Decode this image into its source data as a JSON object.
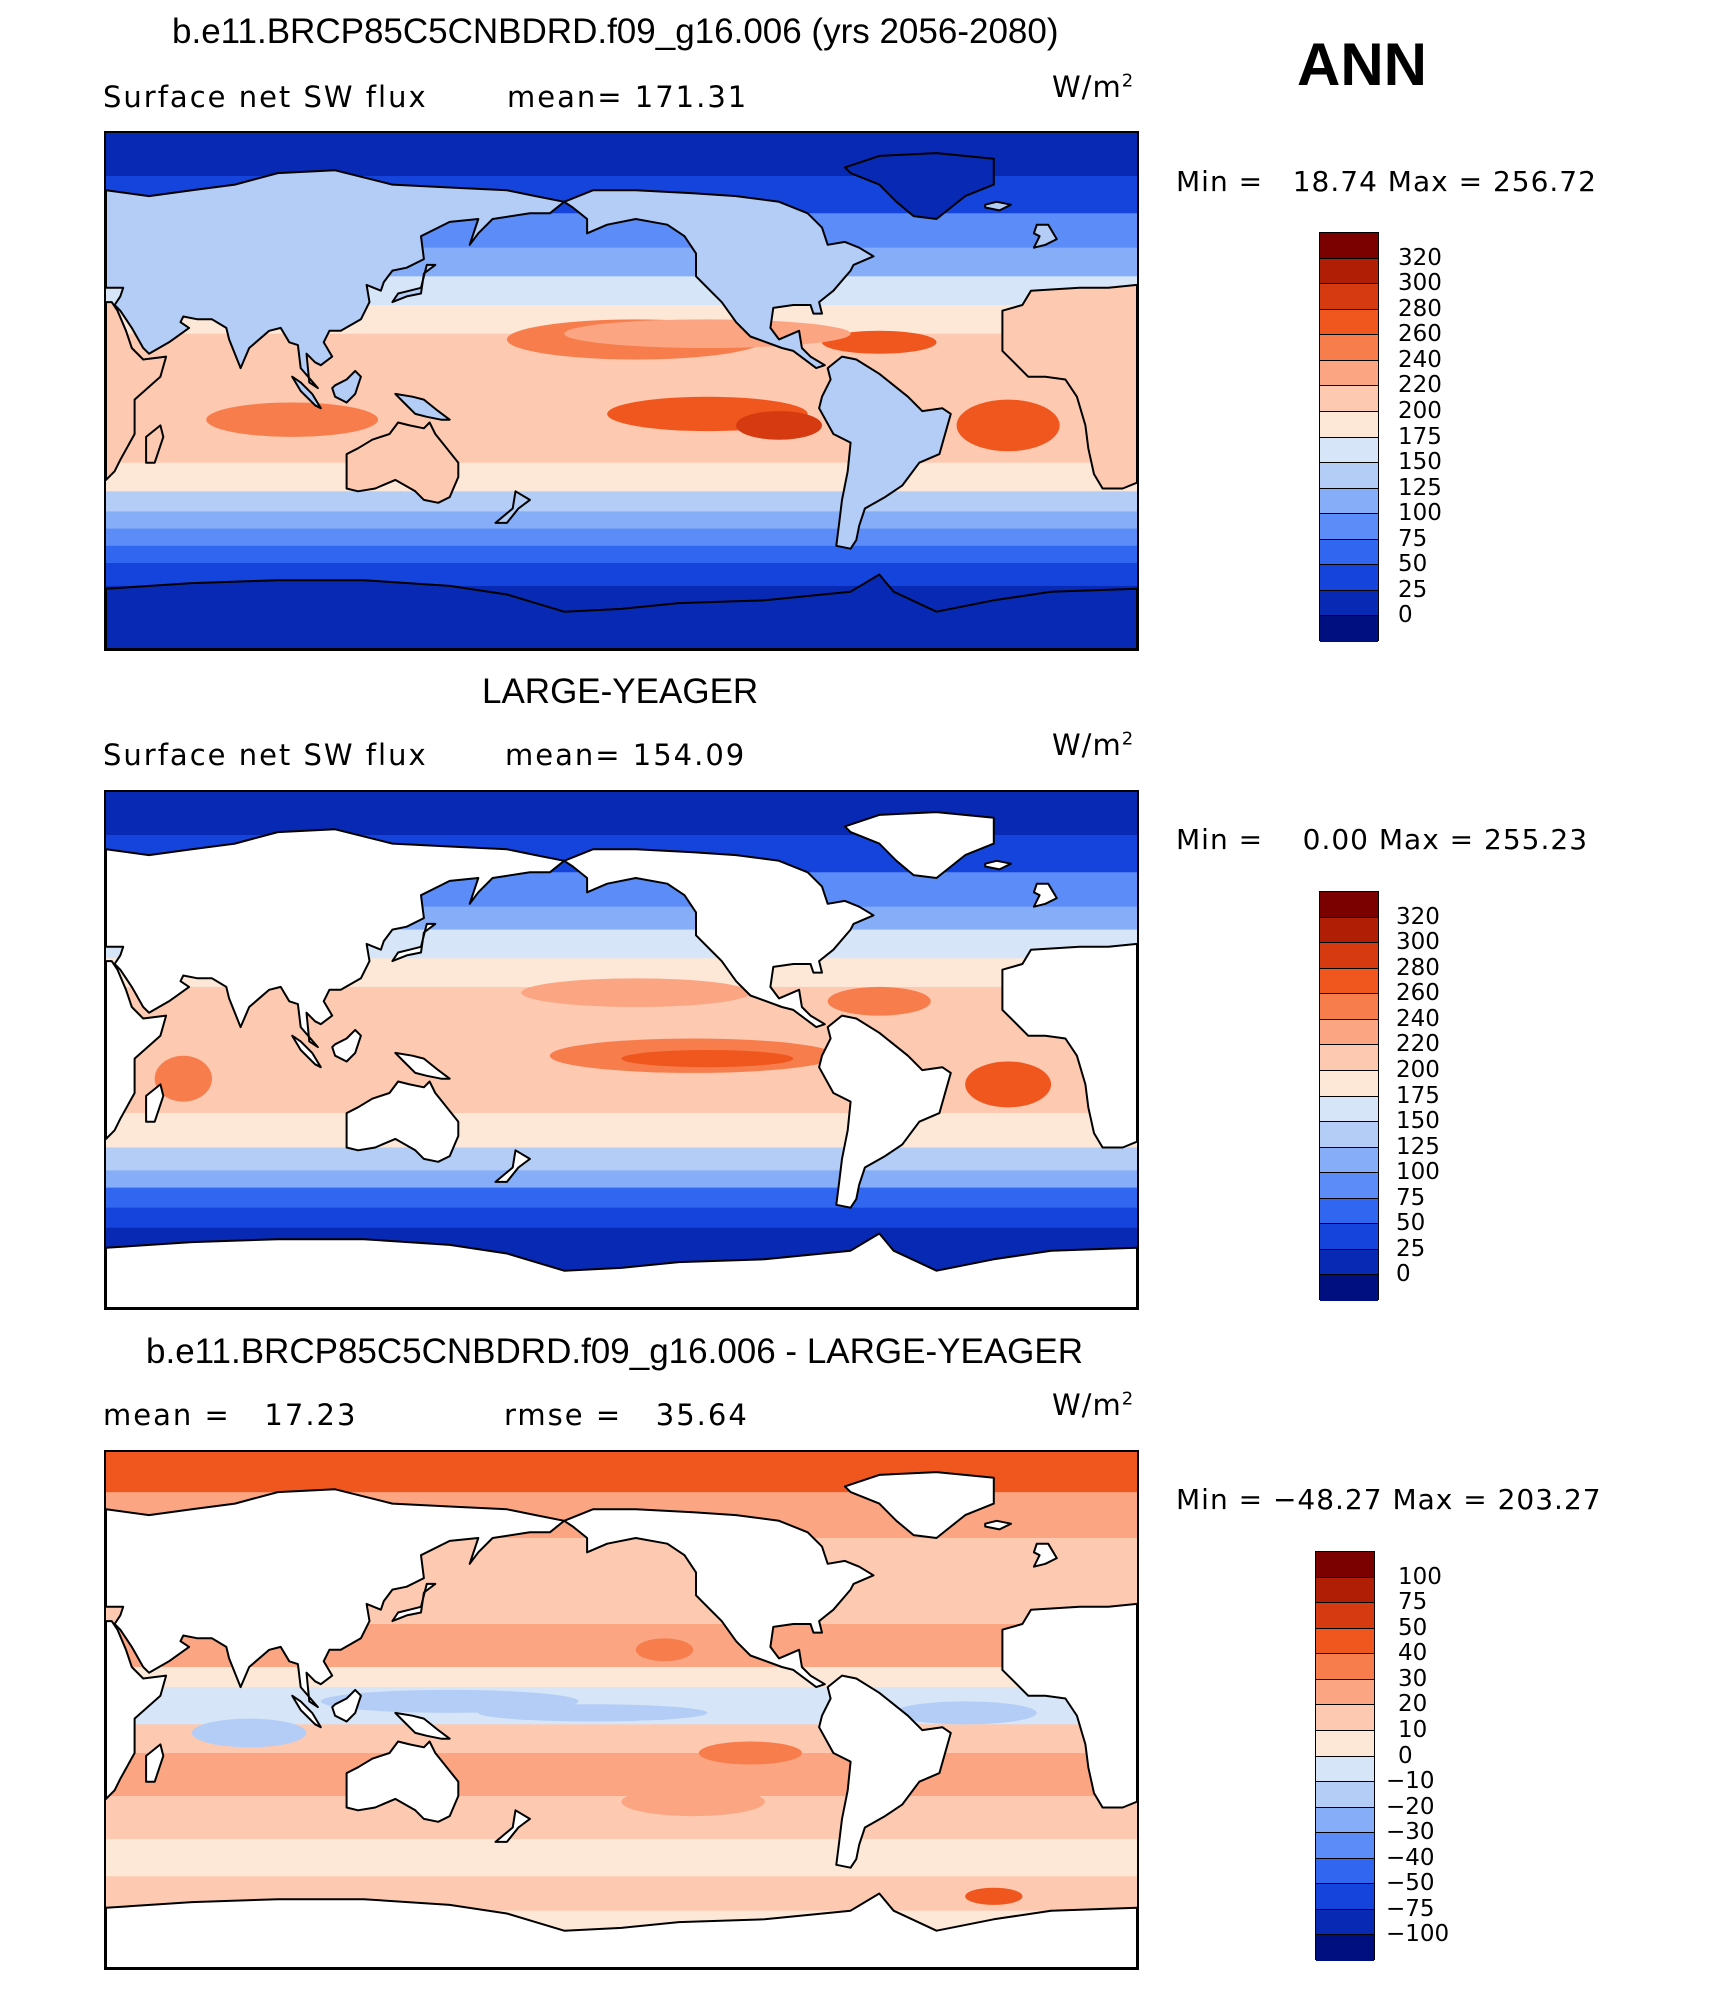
{
  "season_label": "ANN",
  "panels": [
    {
      "title": "b.e11.BRCP85C5CNBDRD.f09_g16.006 (yrs 2056-2080)",
      "left_label": "Surface net SW flux",
      "mid_label": "mean= 171.31",
      "units": "W/m",
      "units_exp": "2",
      "min_max": "Min =   18.74 Max = 256.72",
      "colorbar_labels": [
        "320",
        "300",
        "280",
        "260",
        "240",
        "220",
        "200",
        "175",
        "150",
        "125",
        "100",
        "75",
        "50",
        "25",
        "0"
      ],
      "field": "model"
    },
    {
      "title": "LARGE-YEAGER",
      "left_label": "Surface net SW flux",
      "mid_label": "mean= 154.09",
      "units": "W/m",
      "units_exp": "2",
      "min_max": "Min =    0.00 Max = 255.23",
      "colorbar_labels": [
        "320",
        "300",
        "280",
        "260",
        "240",
        "220",
        "200",
        "175",
        "150",
        "125",
        "100",
        "75",
        "50",
        "25",
        "0"
      ],
      "field": "obs"
    },
    {
      "title": "b.e11.BRCP85C5CNBDRD.f09_g16.006 - LARGE-YEAGER",
      "left_label": "mean =   17.23",
      "mid_label": "rmse =   35.64",
      "units": "W/m",
      "units_exp": "2",
      "min_max": "Min = −48.27 Max = 203.27",
      "colorbar_labels": [
        "100",
        "75",
        "50",
        "40",
        "30",
        "20",
        "10",
        "0",
        "−10",
        "−20",
        "−30",
        "−40",
        "−50",
        "−75",
        "−100"
      ],
      "field": "diff"
    }
  ],
  "colors": {
    "abs_scale": [
      "#7b0000",
      "#b01e06",
      "#d63a10",
      "#f0571e",
      "#f77d4c",
      "#fba582",
      "#fdc9b0",
      "#fde8d8",
      "#d6e6f8",
      "#b3cdf6",
      "#86aef8",
      "#5b8cf8",
      "#3066f0",
      "#1444db",
      "#0829b4",
      "#000f80"
    ],
    "diff_scale": [
      "#7b0000",
      "#b01e06",
      "#d63a10",
      "#f0571e",
      "#f77d4c",
      "#fba582",
      "#fdc9b0",
      "#fde8d8",
      "#d6e6f8",
      "#b3cdf6",
      "#86aef8",
      "#5b8cf8",
      "#3066f0",
      "#1444db",
      "#0829b4",
      "#000f80"
    ],
    "land": "#ffffff",
    "coast": "#000000"
  }
}
